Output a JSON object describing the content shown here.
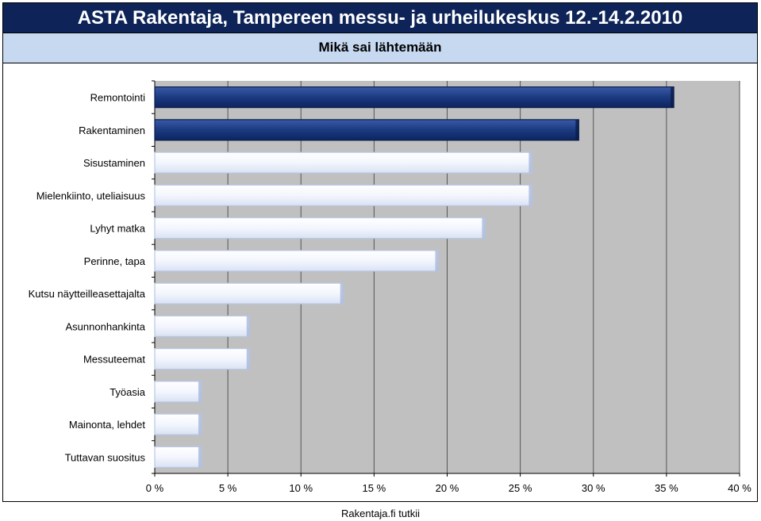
{
  "header": {
    "title": "ASTA Rakentaja, Tampereen messu- ja urheilukeskus 12.-14.2.2010",
    "subtitle": "Mikä sai lähtemään"
  },
  "footer": {
    "source": "Rakentaja.fi tutkii"
  },
  "colors": {
    "plot_background": "#c0c0c0",
    "highlight_bar": "#17357a",
    "highlight_bar_edge": "#0b1d4a",
    "normal_bar": "#f2f5fc",
    "normal_bar_edge": "#b9c7e6",
    "gridline": "#555555"
  },
  "chart_data": {
    "type": "bar",
    "orientation": "horizontal",
    "categories": [
      "Remontointi",
      "Rakentaminen",
      "Sisustaminen",
      "Mielenkiinto, uteliaisuus",
      "Lyhyt matka",
      "Perinne, tapa",
      "Kutsu näytteilleasettajalta",
      "Asunnonhankinta",
      "Messuteemat",
      "Työasia",
      "Mainonta, lehdet",
      "Tuttavan suositus"
    ],
    "values": [
      35.5,
      29.0,
      25.8,
      25.8,
      22.6,
      19.4,
      12.9,
      6.5,
      6.5,
      3.2,
      3.2,
      3.2
    ],
    "highlighted": [
      true,
      true,
      false,
      false,
      false,
      false,
      false,
      false,
      false,
      false,
      false,
      false
    ],
    "xlim": [
      0,
      40
    ],
    "xticks": [
      0,
      5,
      10,
      15,
      20,
      25,
      30,
      35,
      40
    ],
    "xtick_labels": [
      "0 %",
      "5 %",
      "10 %",
      "15 %",
      "20 %",
      "25 %",
      "30 %",
      "35 %",
      "40 %"
    ],
    "xlabel": "",
    "ylabel": "",
    "grid": true,
    "legend": "none"
  }
}
